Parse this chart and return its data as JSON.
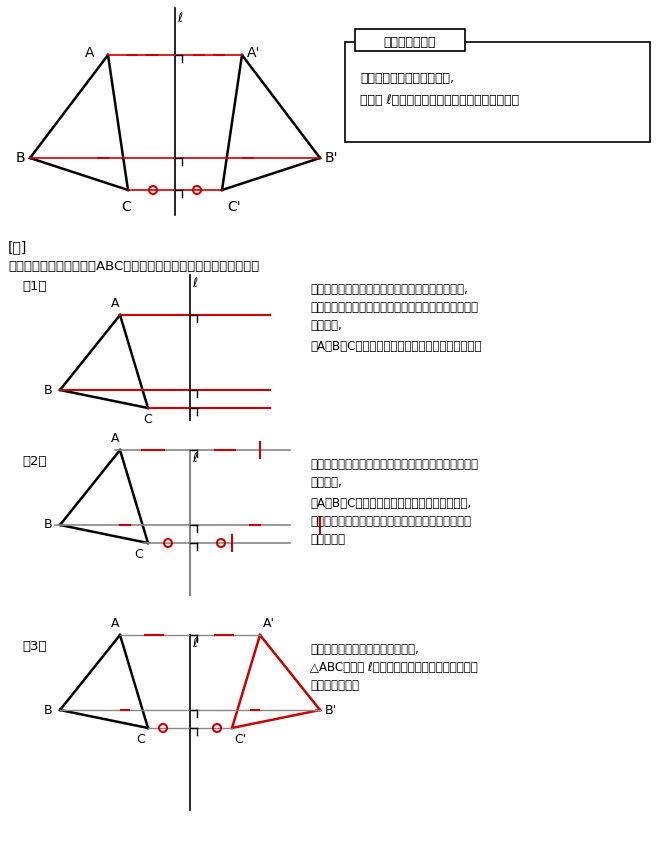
{
  "bg_color": "#ffffff",
  "line_color": "#000000",
  "red_color": "#cc0000",
  "gray_color": "#888888",
  "axis_color": "#555555",
  "title_box_text": "対称移動の性質",
  "property_text1": "対応する点を結んだ線分は,",
  "property_text2": "対称軸 ℓと「中点で」「垂直に」交わります。",
  "example_header": "[例]",
  "example_intro": "性質をふまえて，三角形ABCの対称移動した図形をかいてみます。",
  "step1_label": "（1）",
  "step1_text1": "対応する点がどこになるかを作図すればいいので,",
  "step1_text2": "対応する点を結んだ線分は対称軸と「垂直に」交わる",
  "step1_text3": "ことから,",
  "step1_text4": "点A・B・Cから対称軸に垂直な半直線をひきます。",
  "step2_label": "（2）",
  "step2_text1": "対応する点を結んだ線分は対称軸と「中点で」交わる",
  "step2_text2": "ことから,",
  "step2_text3": "点A・B・Cから対称軸までの長さと同じ長さを,",
  "step2_text4": "対称軸から半直線上のもとの図形の反対側の位置に",
  "step2_text5": "とります。",
  "step3_label": "（3）",
  "step3_text1": "半直線上にとった点を順に結べば,",
  "step3_text2": "△ABCを直線 ℓを対称軸として対称移動した図が",
  "step3_text3": "作図できます。"
}
